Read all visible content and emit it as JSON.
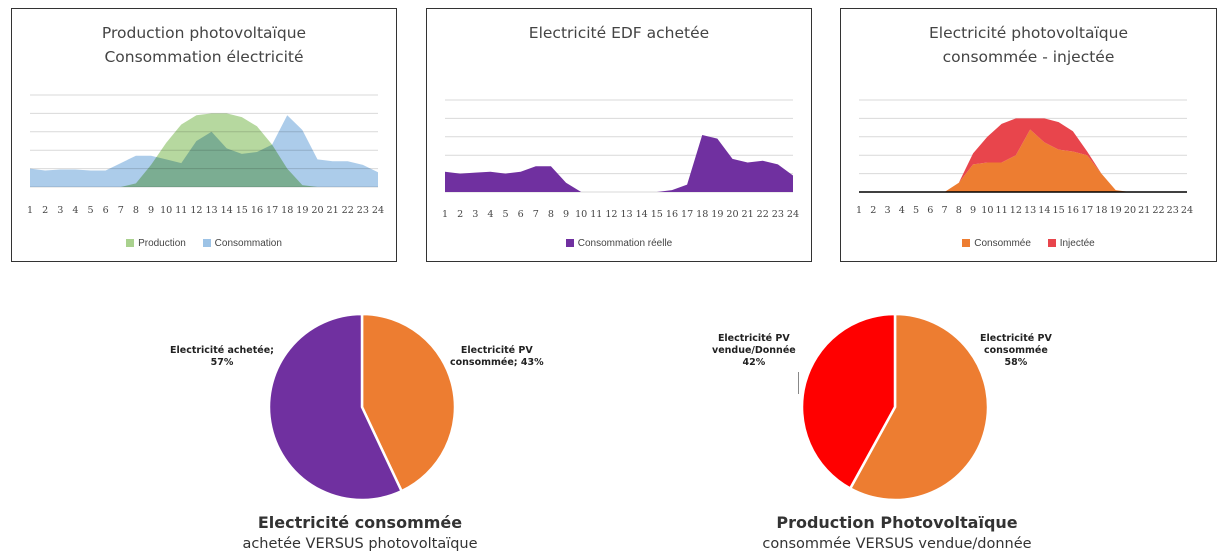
{
  "chart_data": [
    {
      "type": "area",
      "title_lines": [
        "Production photovoltaïque",
        "Consommation électricité"
      ],
      "x": [
        1,
        2,
        3,
        4,
        5,
        6,
        7,
        8,
        9,
        10,
        11,
        12,
        13,
        14,
        15,
        16,
        17,
        18,
        19,
        20,
        21,
        22,
        23,
        24
      ],
      "x_tick_labels": [
        "1",
        "2",
        "3",
        "4",
        "5",
        "6",
        "7",
        "8",
        "9",
        "10",
        "11",
        "12",
        "13",
        "14",
        "15",
        "16",
        "17",
        "18",
        "19",
        "20",
        "21",
        "22",
        "23",
        "24"
      ],
      "ylim": [
        0,
        5
      ],
      "grid": true,
      "legend_position": "bottom",
      "series": [
        {
          "name": "Production",
          "color": "#a9d18e",
          "values": [
            0,
            0,
            0,
            0,
            0,
            0,
            0,
            0.2,
            1.2,
            2.4,
            3.4,
            3.9,
            4.0,
            4.0,
            3.8,
            3.3,
            2.3,
            1.0,
            0.1,
            0,
            0,
            0,
            0,
            0
          ]
        },
        {
          "name": "Consommation",
          "color": "#9dc3e6",
          "values": [
            1.0,
            0.9,
            0.95,
            0.95,
            0.9,
            0.9,
            1.3,
            1.7,
            1.7,
            1.5,
            1.3,
            2.5,
            3.0,
            2.1,
            1.8,
            1.9,
            2.3,
            3.9,
            3.1,
            1.5,
            1.4,
            1.4,
            1.2,
            0.8
          ]
        }
      ]
    },
    {
      "type": "area",
      "title": "Electricité EDF achetée",
      "x": [
        1,
        2,
        3,
        4,
        5,
        6,
        7,
        8,
        9,
        10,
        11,
        12,
        13,
        14,
        15,
        16,
        17,
        18,
        19,
        20,
        21,
        22,
        23,
        24
      ],
      "x_tick_labels": [
        "1",
        "2",
        "3",
        "4",
        "5",
        "6",
        "7",
        "8",
        "9",
        "10",
        "11",
        "12",
        "13",
        "14",
        "15",
        "16",
        "17",
        "18",
        "19",
        "20",
        "21",
        "22",
        "23",
        "24"
      ],
      "ylim": [
        0,
        5
      ],
      "grid": true,
      "legend_position": "bottom",
      "series": [
        {
          "name": "Consommation réelle",
          "color": "#7030a0",
          "values": [
            1.1,
            1.0,
            1.05,
            1.1,
            1.0,
            1.1,
            1.4,
            1.4,
            0.5,
            0,
            0,
            0,
            0,
            0,
            0,
            0.1,
            0.4,
            3.1,
            2.9,
            1.8,
            1.6,
            1.7,
            1.5,
            0.9
          ]
        }
      ]
    },
    {
      "type": "area",
      "title_lines": [
        "Electricité photovoltaïque",
        "consommée - injectée"
      ],
      "x": [
        1,
        2,
        3,
        4,
        5,
        6,
        7,
        8,
        9,
        10,
        11,
        12,
        13,
        14,
        15,
        16,
        17,
        18,
        19,
        20,
        21,
        22,
        23,
        24
      ],
      "x_tick_labels": [
        "1",
        "2",
        "3",
        "4",
        "5",
        "6",
        "7",
        "8",
        "9",
        "10",
        "11",
        "12",
        "13",
        "14",
        "15",
        "16",
        "17",
        "18",
        "19",
        "20",
        "21",
        "22",
        "23",
        "24"
      ],
      "ylim": [
        0,
        5
      ],
      "grid": true,
      "legend_position": "bottom",
      "series": [
        {
          "name": "Consommée",
          "color": "#ed7d31",
          "values": [
            0,
            0,
            0,
            0,
            0,
            0,
            0,
            0.5,
            1.5,
            1.6,
            1.6,
            2.0,
            3.4,
            2.7,
            2.3,
            2.2,
            2.0,
            1.0,
            0.1,
            0,
            0,
            0,
            0,
            0
          ]
        },
        {
          "name": "Injectée",
          "color": "#e8454c",
          "values": [
            0,
            0,
            0,
            0,
            0,
            0,
            0,
            0,
            0.6,
            1.4,
            2.1,
            2.0,
            0.6,
            1.3,
            1.5,
            1.1,
            0.2,
            0,
            0,
            0,
            0,
            0,
            0,
            0
          ]
        }
      ]
    },
    {
      "type": "pie",
      "title": "Electricité consommée",
      "subtitle": "achetée VERSUS photovoltaïque",
      "slices": [
        {
          "label_lines": [
            "Electricité PV",
            "consommée; 43%"
          ],
          "value": 43,
          "color": "#ed7d31"
        },
        {
          "label_lines": [
            "Electricité achetée;",
            "57%"
          ],
          "value": 57,
          "color": "#7030a0"
        }
      ]
    },
    {
      "type": "pie",
      "title": "Production Photovoltaïque",
      "subtitle": "consommée VERSUS vendue/donnée",
      "slices": [
        {
          "label_lines": [
            "Electricité PV",
            "consommée",
            "58%"
          ],
          "value": 58,
          "color": "#ed7d31"
        },
        {
          "label_lines": [
            "Electricité PV",
            "vendue/Donnée",
            "42%"
          ],
          "value": 42,
          "color": "#ff0000"
        }
      ]
    }
  ]
}
